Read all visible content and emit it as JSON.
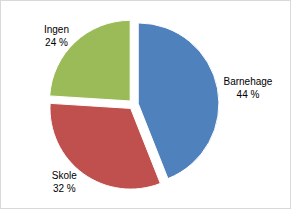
{
  "chart_data": {
    "type": "pie",
    "categories": [
      "Barnehage",
      "Skole",
      "Ingen"
    ],
    "values": [
      44,
      32,
      24
    ],
    "value_labels": [
      "44 %",
      "32 %",
      "24 %"
    ],
    "colors": [
      "#4f81bd",
      "#c0504d",
      "#9bbb59"
    ],
    "data_labels": true
  }
}
